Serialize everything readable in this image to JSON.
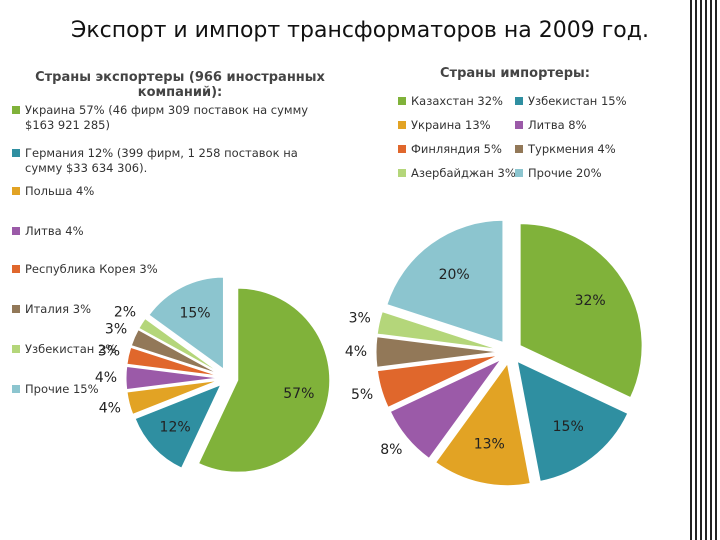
{
  "title": "Экспорт и импорт трансформаторов на 2009 год.",
  "chart_data": [
    {
      "type": "pie",
      "title": "Страны экспортеры (966 иностранных компаний):",
      "categories": [
        "Украина 57% (46 фирм 309 поставок на сумму $163 921 285)",
        "Германия 12% (399 фирм, 1 258 поставок на сумму $33 634 306).",
        "Польша 4%",
        "Литва 4%",
        "Республика Корея 3%",
        "Италия 3%",
        "Узбекистан 2%",
        "Прочие 15%"
      ],
      "values": [
        57,
        12,
        4,
        4,
        3,
        3,
        2,
        15
      ],
      "value_labels": [
        "57%",
        "12%",
        "4%",
        "4%",
        "3%",
        "3%",
        "2%",
        "15%"
      ],
      "colors": [
        "#80b23a",
        "#2f8fa1",
        "#e2a324",
        "#9b5aa8",
        "#e0672c",
        "#927858",
        "#b4d67a",
        "#8cc5cf"
      ]
    },
    {
      "type": "pie",
      "title": "Страны импортеры:",
      "categories": [
        "Казахстан 32%",
        "Узбекистан 15%",
        "Украина 13%",
        "Литва 8%",
        "Финляндия 5%",
        "Туркмения 4%",
        "Азербайджан 3%",
        "Прочие 20%"
      ],
      "values": [
        32,
        15,
        13,
        8,
        5,
        4,
        3,
        20
      ],
      "value_labels": [
        "32%",
        "15%",
        "13%",
        "8%",
        "5%",
        "4%",
        "3%",
        "20%"
      ],
      "colors": [
        "#80b23a",
        "#2f8fa1",
        "#e2a324",
        "#9b5aa8",
        "#e0672c",
        "#927858",
        "#b4d67a",
        "#8cc5cf"
      ]
    }
  ]
}
